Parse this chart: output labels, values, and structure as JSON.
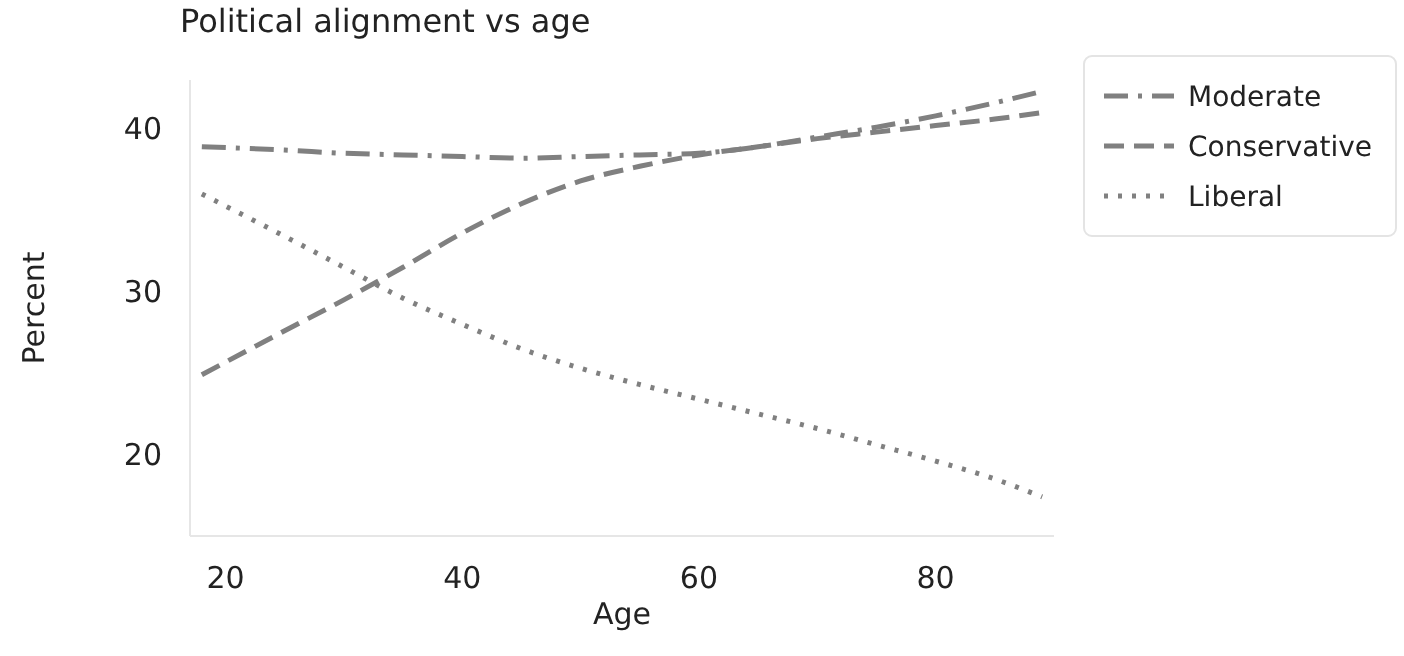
{
  "chart_data": {
    "type": "line",
    "title": "Political alignment vs age",
    "xlabel": "Age",
    "ylabel": "Percent",
    "x": [
      18,
      25,
      30,
      35,
      40,
      45,
      50,
      55,
      60,
      65,
      70,
      75,
      80,
      85,
      89
    ],
    "series": [
      {
        "name": "Moderate",
        "color": "#808080",
        "line_style": "dashdot",
        "values": [
          38.9,
          38.7,
          38.5,
          38.4,
          38.3,
          38.2,
          38.3,
          38.4,
          38.5,
          38.9,
          39.5,
          40.1,
          40.8,
          41.6,
          42.3
        ]
      },
      {
        "name": "Conservative",
        "color": "#808080",
        "line_style": "dashed",
        "values": [
          24.9,
          27.6,
          29.5,
          31.5,
          33.6,
          35.4,
          36.8,
          37.7,
          38.4,
          38.9,
          39.4,
          39.8,
          40.2,
          40.6,
          41.0
        ]
      },
      {
        "name": "Liberal",
        "color": "#808080",
        "line_style": "dotted",
        "values": [
          36.0,
          33.4,
          31.5,
          29.6,
          28.0,
          26.5,
          25.3,
          24.3,
          23.4,
          22.5,
          21.6,
          20.6,
          19.6,
          18.5,
          17.4
        ]
      }
    ],
    "xlim": [
      17,
      90
    ],
    "ylim": [
      15,
      43
    ],
    "xticks": [
      20,
      40,
      60,
      80
    ],
    "yticks": [
      20,
      30,
      40
    ],
    "grid": false,
    "legend": "right",
    "marker": "none"
  }
}
